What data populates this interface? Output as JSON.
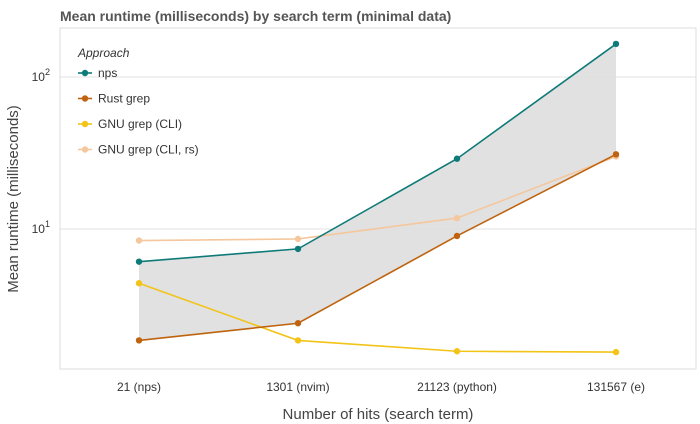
{
  "chart_data": {
    "type": "line",
    "title": "Mean runtime (milliseconds) by search term (minimal data)",
    "xlabel": "Number of hits (search term)",
    "ylabel": "Mean runtime (milliseconds)",
    "y_scale": "log10",
    "ylim": [
      1.2,
      210
    ],
    "y_ticks": [
      {
        "value": 10,
        "label": "10",
        "sup": "1"
      },
      {
        "value": 100,
        "label": "10",
        "sup": "2"
      }
    ],
    "categories": [
      "21 (nps)",
      "1301 (nvim)",
      "21123 (python)",
      "131567 (e)"
    ],
    "grid": true,
    "legend_position": "top-left",
    "legend_title": "Approach",
    "ribbon": {
      "between": [
        "nps",
        "Rust grep"
      ],
      "color": "#dedede"
    },
    "series": [
      {
        "name": "nps",
        "color": "#0f7b78",
        "values": [
          6.1,
          7.4,
          29,
          165
        ]
      },
      {
        "name": "Rust grep",
        "color": "#c0630f",
        "values": [
          1.85,
          2.4,
          9.0,
          31
        ]
      },
      {
        "name": "GNU grep (CLI)",
        "color": "#f2c417",
        "values": [
          4.4,
          1.85,
          1.57,
          1.55
        ]
      },
      {
        "name": "GNU grep (CLI, rs)",
        "color": "#f4c79c",
        "values": [
          8.4,
          8.6,
          11.8,
          30
        ]
      }
    ]
  }
}
